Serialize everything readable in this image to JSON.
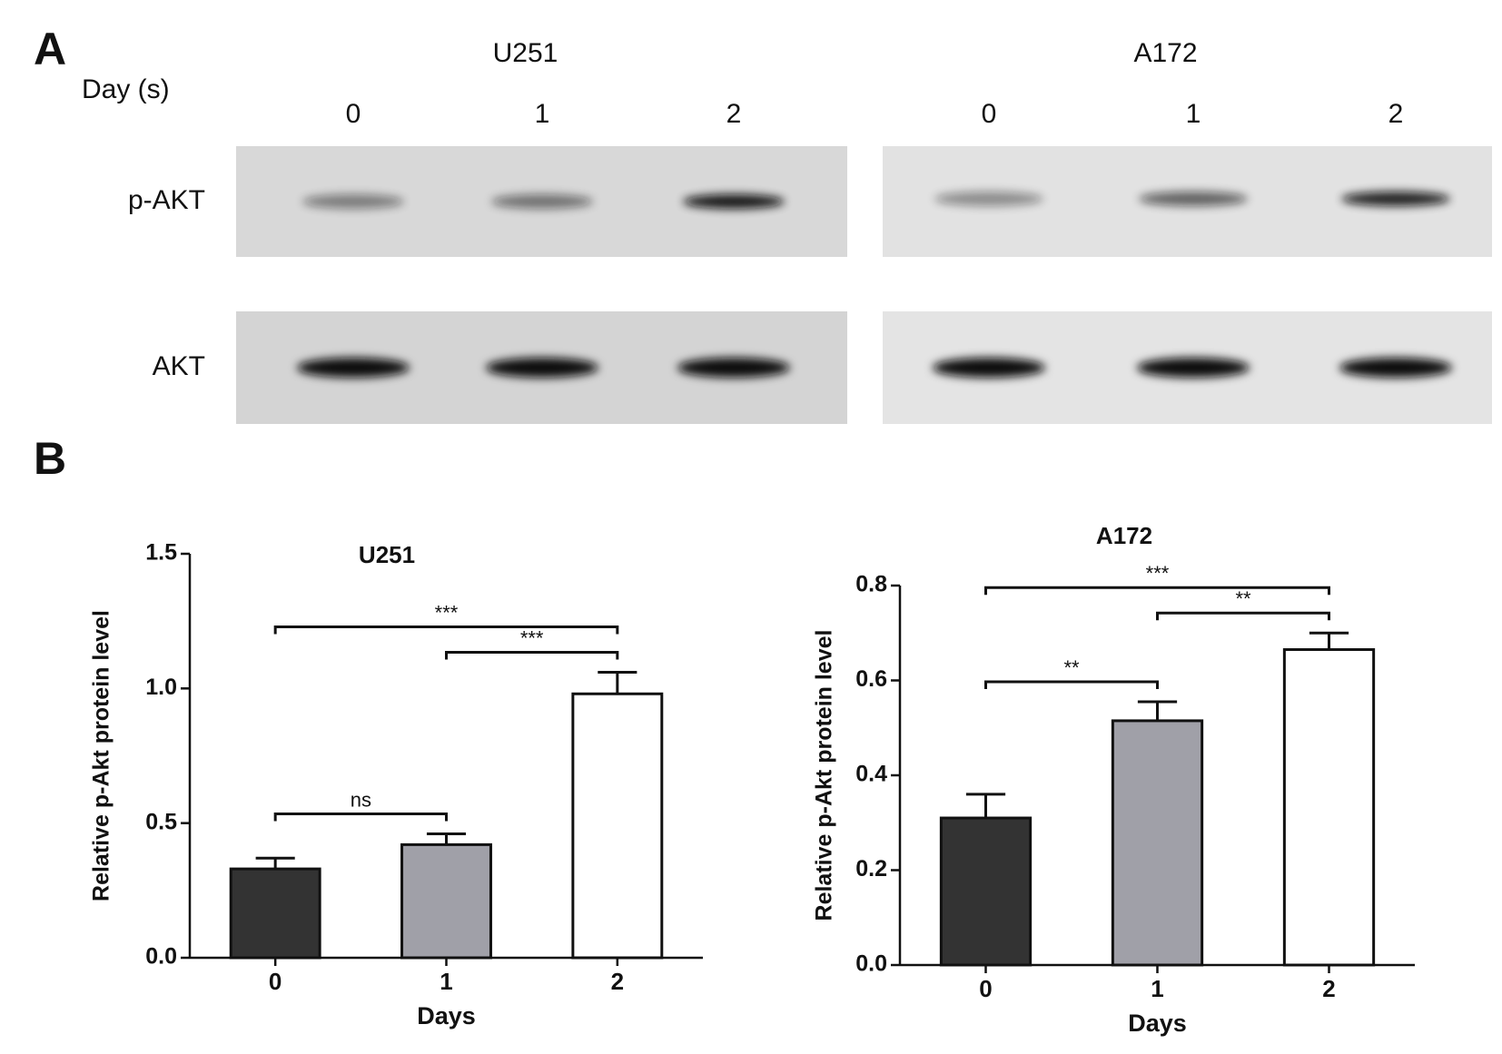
{
  "panel_a": {
    "label": "A",
    "day_label": "Day (s)",
    "rows": [
      "p-AKT",
      "AKT"
    ],
    "groups": [
      {
        "name": "U251",
        "days": [
          "0",
          "1",
          "2"
        ]
      },
      {
        "name": "A172",
        "days": [
          "0",
          "1",
          "2"
        ]
      }
    ]
  },
  "panel_b": {
    "label": "B"
  },
  "chart_data": [
    {
      "type": "bar",
      "title": "U251",
      "xlabel": "Days",
      "ylabel": "Relative p-Akt protein level",
      "categories": [
        "0",
        "1",
        "2"
      ],
      "values": [
        0.33,
        0.42,
        0.98
      ],
      "errors": [
        0.04,
        0.04,
        0.08
      ],
      "colors": [
        "#333333",
        "#a0a0a8",
        "#ffffff"
      ],
      "ylim": [
        0,
        1.5
      ],
      "yticks": [
        {
          "value": 0,
          "label": "0.0"
        },
        0.5,
        {
          "value": 1,
          "label": "1.0"
        },
        1.5
      ],
      "annotations": [
        {
          "label": "ns",
          "between": [
            0,
            1
          ]
        },
        {
          "label": "***",
          "between": [
            1,
            2
          ]
        },
        {
          "label": "***",
          "between": [
            0,
            2
          ]
        }
      ]
    },
    {
      "type": "bar",
      "title": "A172",
      "xlabel": "Days",
      "ylabel": "Relative p-Akt protein level",
      "categories": [
        "0",
        "1",
        "2"
      ],
      "values": [
        0.31,
        0.515,
        0.665
      ],
      "errors": [
        0.05,
        0.04,
        0.035
      ],
      "colors": [
        "#333333",
        "#a0a0a8",
        "#ffffff"
      ],
      "ylim": [
        0,
        0.8
      ],
      "yticks": [
        {
          "value": 0,
          "label": "0.0"
        },
        0.2,
        0.4,
        0.6,
        0.8
      ],
      "annotations": [
        {
          "label": "**",
          "between": [
            0,
            1
          ]
        },
        {
          "label": "**",
          "between": [
            1,
            2
          ]
        },
        {
          "label": "***",
          "between": [
            0,
            2
          ]
        }
      ]
    }
  ]
}
